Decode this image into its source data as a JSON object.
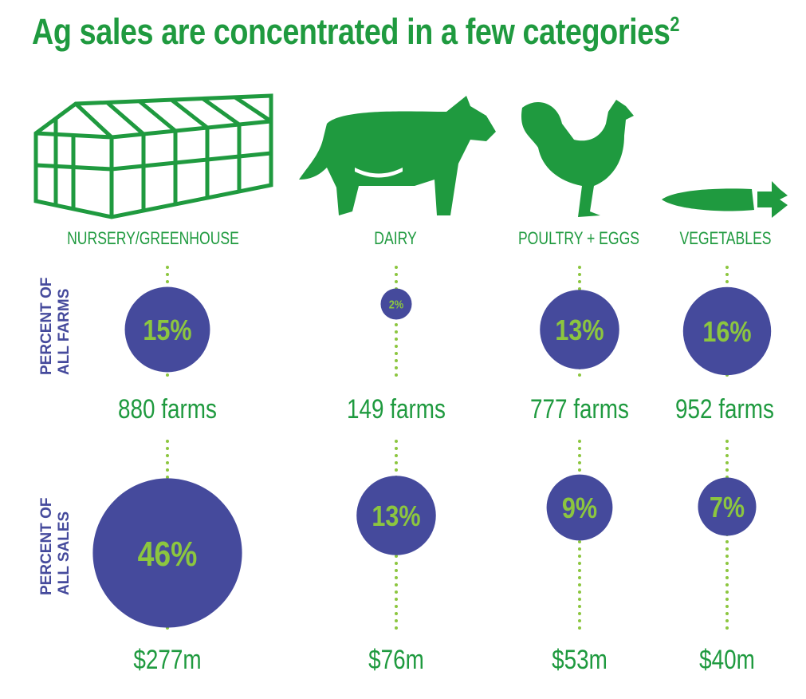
{
  "title": "Ag sales are concentrated in a few categories",
  "title_footnote": "2",
  "colors": {
    "title_green": "#1f9a3f",
    "bubble_purple": "#454a9c",
    "bubble_text_green": "#8cc63f",
    "dotted_line": "#8cc63f",
    "icon_green": "#1f9a3f"
  },
  "row_labels": {
    "farms": [
      "PERCENT OF",
      "ALL FARMS"
    ],
    "sales": [
      "PERCENT OF",
      "ALL SALES"
    ]
  },
  "chart_data": {
    "type": "bubble",
    "categories": [
      "NURSERY/GREENHOUSE",
      "DAIRY",
      "POULTRY + EGGS",
      "VEGETABLES"
    ],
    "icons": [
      "greenhouse-icon",
      "cow-icon",
      "chicken-icon",
      "carrot-icon"
    ],
    "series": [
      {
        "name": "PERCENT OF ALL FARMS",
        "values": [
          15,
          2,
          13,
          16
        ],
        "labels": [
          "15%",
          "2%",
          "13%",
          "16%"
        ],
        "counts": [
          "880 farms",
          "149 farms",
          "777 farms",
          "952 farms"
        ]
      },
      {
        "name": "PERCENT OF ALL SALES",
        "values": [
          46,
          13,
          9,
          7
        ],
        "labels": [
          "46%",
          "13%",
          "9%",
          "7%"
        ],
        "amounts": [
          "$277m",
          "$76m",
          "$53m",
          "$40m"
        ]
      }
    ]
  }
}
